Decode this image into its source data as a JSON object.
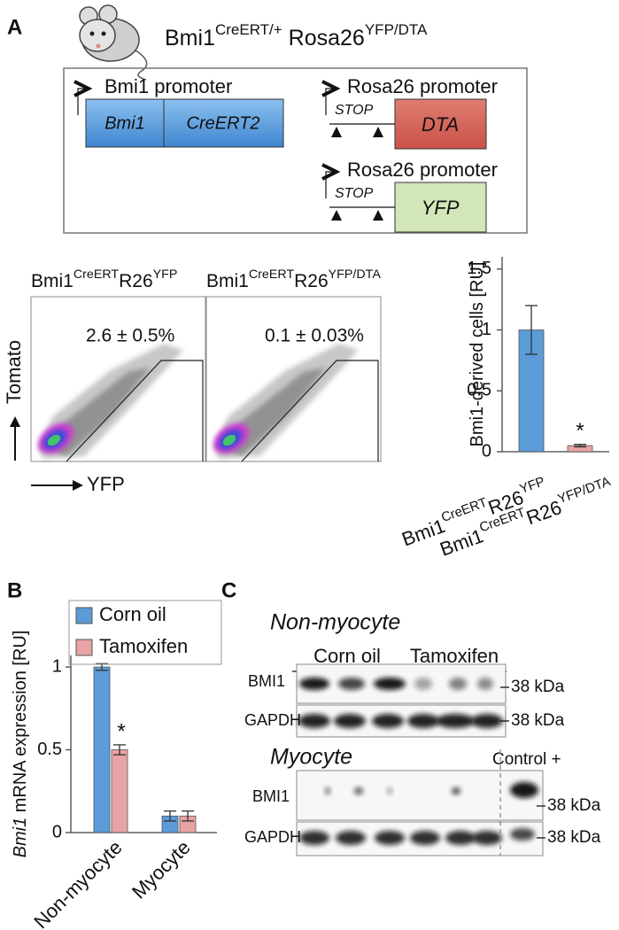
{
  "panel_labels": [
    "A",
    "B",
    "C"
  ],
  "genotype": [
    {
      "text": "Bmi1"
    },
    {
      "text": "CreERT/+",
      "sup": true
    },
    {
      "text": " Rosa26"
    },
    {
      "text": "YFP/DTA",
      "sup": true
    }
  ],
  "construct": {
    "bmi1_promoter": "Bmi1 promoter",
    "bmi1": "Bmi1",
    "creert2": "CreERT2",
    "rosa26_promoter": [
      "Rosa26 promoter",
      "Rosa26 promoter"
    ],
    "stop": [
      "STOP",
      "STOP"
    ],
    "dta": "DTA",
    "yfp": "YFP"
  },
  "flow": {
    "plots": [
      {
        "title": [
          {
            "text": "Bmi1"
          },
          {
            "text": "CreERT",
            "sup": true
          },
          {
            "text": "R26"
          },
          {
            "text": "YFP",
            "sup": true
          }
        ],
        "annotation": "2.6 ± 0.5%"
      },
      {
        "title": [
          {
            "text": "Bmi1"
          },
          {
            "text": "CreERT",
            "sup": true
          },
          {
            "text": "R26"
          },
          {
            "text": "YFP/DTA",
            "sup": true
          }
        ],
        "annotation": "0.1 ± 0.03%"
      }
    ],
    "y_label": "Tomato",
    "x_label": "YFP"
  },
  "chart_data": [
    {
      "type": "bar",
      "categories": [
        [
          {
            "text": "Bmi1"
          },
          {
            "text": "CreERT",
            "sup": true
          },
          {
            "text": "R26"
          },
          {
            "text": "YFP",
            "sup": true
          }
        ],
        [
          {
            "text": "Bmi1"
          },
          {
            "text": "CreERT",
            "sup": true
          },
          {
            "text": "R26"
          },
          {
            "text": "YFP/DTA",
            "sup": true
          }
        ]
      ],
      "values": [
        1,
        0.05
      ],
      "errors": [
        0.2,
        0.01
      ],
      "significance": [
        null,
        "*"
      ],
      "colors": [
        "#5b9bd8",
        "#e8a4a4"
      ],
      "ylim": [
        0,
        1.6
      ],
      "yticks": [
        0,
        0.5,
        1,
        1.5
      ],
      "y_label": [
        {
          "text": "Bmi1-derived cells [RU]"
        }
      ]
    },
    {
      "type": "grouped_bar",
      "categories": [
        "Non-myocyte",
        "Myocyte"
      ],
      "series": [
        {
          "name": "Corn oil",
          "color": "#5b9bd8",
          "values": [
            1,
            0.1
          ],
          "errors": [
            0.02,
            0.03
          ],
          "significance": [
            null,
            null
          ]
        },
        {
          "name": "Tamoxifen",
          "color": "#e8a4a4",
          "values": [
            0.5,
            0.1
          ],
          "errors": [
            0.03,
            0.03
          ],
          "significance": [
            "*",
            null
          ]
        }
      ],
      "ylim": [
        0,
        1.07
      ],
      "yticks": [
        0,
        0.5,
        1
      ],
      "y_label": [
        {
          "text": "Bmi1",
          "italic": true
        },
        {
          "text": " mRNA expression [RU]"
        }
      ]
    }
  ],
  "blots": {
    "non_myocyte": {
      "title": "Non-myocyte",
      "groups": [
        "Corn oil",
        "Tamoxifen"
      ],
      "rows": [
        "BMI1",
        "GAPDH"
      ]
    },
    "myocyte": {
      "title": "Myocyte",
      "control": "Control +",
      "rows": [
        "BMI1",
        "GAPDH"
      ]
    },
    "marker": [
      "38 kDa",
      "38 kDa",
      "38 kDa",
      "38 kDa"
    ]
  }
}
